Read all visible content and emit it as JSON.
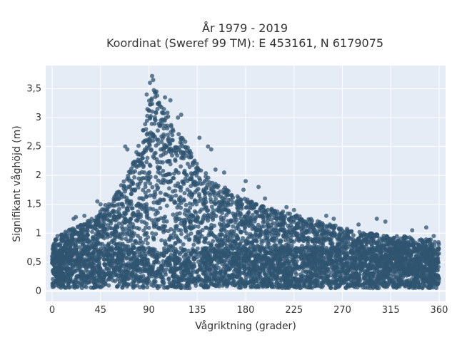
{
  "chart_data": {
    "type": "scatter",
    "title": "År 1979 - 2019",
    "subtitle": "Koordinat (Sweref 99 TM): E 453161, N 6179075",
    "xlabel": "Vågriktning (grader)",
    "ylabel": "Signifikant våghöjd (m)",
    "xlim": [
      -6,
      366
    ],
    "ylim": [
      -0.18,
      3.9
    ],
    "x_ticks": [
      0,
      45,
      90,
      135,
      180,
      225,
      270,
      315,
      360
    ],
    "x_tick_labels": [
      "0",
      "45",
      "90",
      "135",
      "180",
      "225",
      "270",
      "315",
      "360"
    ],
    "y_ticks": [
      0,
      0.5,
      1,
      1.5,
      2,
      2.5,
      3,
      3.5
    ],
    "y_tick_labels": [
      "0",
      "0,5",
      "1",
      "1,5",
      "2",
      "2,5",
      "3",
      "3,5"
    ],
    "grid": true,
    "marker_color": "#2f5470",
    "plot_background": "#e5ecf6",
    "envelope": {
      "x": [
        0,
        10,
        20,
        30,
        40,
        50,
        60,
        70,
        80,
        85,
        90,
        95,
        100,
        110,
        120,
        130,
        140,
        150,
        160,
        170,
        180,
        190,
        200,
        210,
        220,
        230,
        240,
        250,
        260,
        270,
        280,
        290,
        300,
        310,
        320,
        330,
        340,
        350,
        360
      ],
      "y_max": [
        0.9,
        1.0,
        1.1,
        1.2,
        1.3,
        1.5,
        1.7,
        2.0,
        2.5,
        2.9,
        3.3,
        3.5,
        3.3,
        3.0,
        2.7,
        2.4,
        2.1,
        1.9,
        1.8,
        1.7,
        1.6,
        1.5,
        1.45,
        1.4,
        1.35,
        1.3,
        1.25,
        1.2,
        1.15,
        1.1,
        1.05,
        1.0,
        1.0,
        0.95,
        0.95,
        0.95,
        0.9,
        0.9,
        0.85
      ],
      "y_min": 0.05
    },
    "outliers": [
      {
        "x": 93,
        "y": 3.72
      },
      {
        "x": 94,
        "y": 3.65
      },
      {
        "x": 91,
        "y": 3.6
      },
      {
        "x": 97,
        "y": 3.45
      },
      {
        "x": 105,
        "y": 3.35
      },
      {
        "x": 110,
        "y": 3.3
      },
      {
        "x": 88,
        "y": 3.4
      },
      {
        "x": 120,
        "y": 3.05
      },
      {
        "x": 117,
        "y": 3.0
      },
      {
        "x": 137,
        "y": 2.65
      },
      {
        "x": 145,
        "y": 2.5
      },
      {
        "x": 148,
        "y": 2.45
      },
      {
        "x": 70,
        "y": 2.45
      },
      {
        "x": 68,
        "y": 2.5
      },
      {
        "x": 152,
        "y": 2.1
      },
      {
        "x": 160,
        "y": 2.05
      },
      {
        "x": 180,
        "y": 1.9
      },
      {
        "x": 192,
        "y": 1.8
      },
      {
        "x": 178,
        "y": 1.75
      },
      {
        "x": 198,
        "y": 1.6
      },
      {
        "x": 218,
        "y": 1.45
      },
      {
        "x": 225,
        "y": 1.4
      },
      {
        "x": 255,
        "y": 1.3
      },
      {
        "x": 262,
        "y": 1.25
      },
      {
        "x": 302,
        "y": 1.25
      },
      {
        "x": 285,
        "y": 1.15
      },
      {
        "x": 310,
        "y": 1.2
      },
      {
        "x": 20,
        "y": 1.25
      },
      {
        "x": 22,
        "y": 1.28
      },
      {
        "x": 30,
        "y": 1.3
      },
      {
        "x": 45,
        "y": 1.5
      },
      {
        "x": 42,
        "y": 1.55
      },
      {
        "x": 348,
        "y": 1.1
      },
      {
        "x": 355,
        "y": 0.95
      },
      {
        "x": 5,
        "y": 0.95
      },
      {
        "x": 335,
        "y": 1.05
      }
    ]
  }
}
